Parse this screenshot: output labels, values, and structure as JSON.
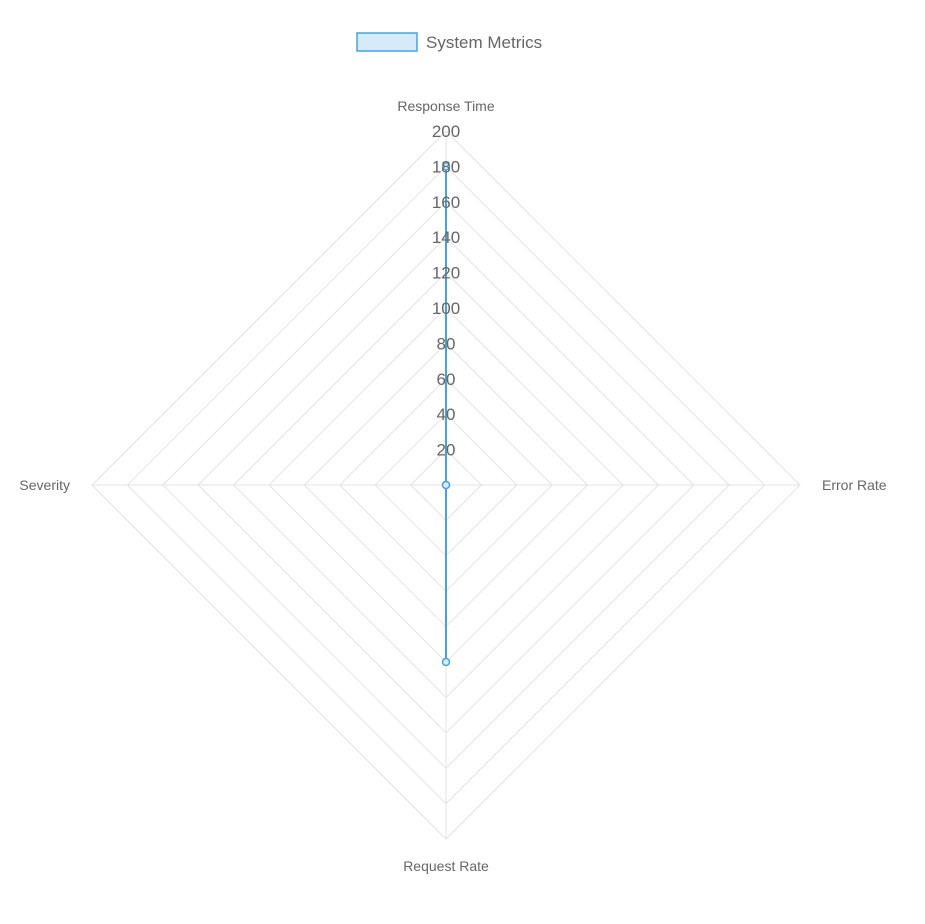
{
  "colors": {
    "series_line": "#4aa3d8",
    "series_fill": "#d6eaf8",
    "grid": "#e3e3e3",
    "text": "#666666"
  },
  "chart_data": {
    "type": "radar",
    "axes": [
      "Response Time",
      "Error Rate",
      "Request Rate",
      "Severity"
    ],
    "series": [
      {
        "name": "System Metrics",
        "values": [
          180,
          0,
          100,
          0
        ]
      }
    ],
    "scale": {
      "min": 0,
      "max": 200,
      "step": 20,
      "ticks": [
        "20",
        "40",
        "60",
        "80",
        "100",
        "120",
        "140",
        "160",
        "180",
        "200"
      ]
    },
    "grid": true,
    "legend_position": "top"
  }
}
